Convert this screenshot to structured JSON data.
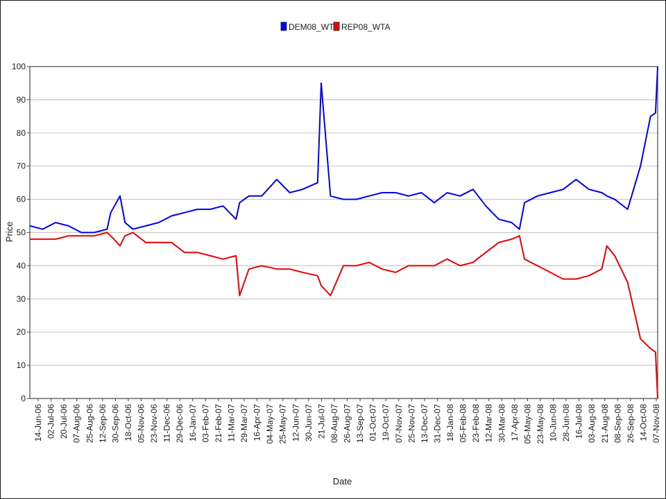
{
  "chart_data": {
    "type": "line",
    "title": "",
    "xlabel": "Date",
    "ylabel": "Price",
    "ylim": [
      0,
      100
    ],
    "yticks": [
      0,
      10,
      20,
      30,
      40,
      50,
      60,
      70,
      80,
      90,
      100
    ],
    "grid": true,
    "legend_position": "top-center",
    "colors": {
      "DEM08_WTA": "#0000ee",
      "REP08_WTA": "#ee0000",
      "grid": "#c8c8c8"
    },
    "x_tick_labels": [
      "14-Jun-06",
      "02-Jul-06",
      "20-Jul-06",
      "07-Aug-06",
      "25-Aug-06",
      "12-Sep-06",
      "30-Sep-06",
      "18-Oct-06",
      "05-Nov-06",
      "23-Nov-06",
      "11-Dec-06",
      "29-Dec-06",
      "16-Jan-07",
      "03-Feb-07",
      "21-Feb-07",
      "11-Mar-07",
      "29-Mar-07",
      "16-Apr-07",
      "04-May-07",
      "25-May-07",
      "12-Jun-07",
      "30-Jun-07",
      "21-Jul-07",
      "08-Aug-07",
      "26-Aug-07",
      "13-Sep-07",
      "01-Oct-07",
      "19-Oct-07",
      "07-Nov-07",
      "25-Nov-07",
      "13-Dec-07",
      "31-Dec-07",
      "18-Jan-08",
      "05-Feb-08",
      "23-Feb-08",
      "12-Mar-08",
      "30-Mar-08",
      "17-Apr-08",
      "05-May-08",
      "23-May-08",
      "10-Jun-08",
      "28-Jun-08",
      "16-Jul-08",
      "03-Aug-08",
      "21-Aug-08",
      "08-Sep-08",
      "26-Sep-08",
      "14-Oct-08",
      "07-Nov-08"
    ],
    "x": [
      "2006-06-14",
      "2006-07-02",
      "2006-07-20",
      "2006-08-07",
      "2006-08-25",
      "2006-09-12",
      "2006-09-30",
      "2006-10-05",
      "2006-10-18",
      "2006-10-25",
      "2006-11-05",
      "2006-11-23",
      "2006-12-11",
      "2006-12-29",
      "2007-01-16",
      "2007-02-03",
      "2007-02-21",
      "2007-03-11",
      "2007-03-29",
      "2007-04-03",
      "2007-04-16",
      "2007-05-04",
      "2007-05-25",
      "2007-06-12",
      "2007-06-30",
      "2007-07-21",
      "2007-07-26",
      "2007-08-08",
      "2007-08-26",
      "2007-09-13",
      "2007-10-01",
      "2007-10-19",
      "2007-11-07",
      "2007-11-25",
      "2007-12-13",
      "2007-12-31",
      "2008-01-18",
      "2008-02-05",
      "2008-02-23",
      "2008-03-12",
      "2008-03-30",
      "2008-04-17",
      "2008-04-28",
      "2008-05-05",
      "2008-05-23",
      "2008-06-10",
      "2008-06-28",
      "2008-07-16",
      "2008-08-03",
      "2008-08-21",
      "2008-08-28",
      "2008-09-08",
      "2008-09-26",
      "2008-10-14",
      "2008-10-28",
      "2008-11-04",
      "2008-11-07"
    ],
    "series": [
      {
        "name": "DEM08_WTA",
        "values": [
          52,
          51,
          53,
          52,
          50,
          50,
          51,
          56,
          61,
          53,
          51,
          52,
          53,
          55,
          56,
          57,
          57,
          58,
          54,
          59,
          61,
          61,
          66,
          62,
          63,
          65,
          95,
          61,
          60,
          60,
          61,
          62,
          62,
          61,
          62,
          59,
          62,
          61,
          63,
          58,
          54,
          53,
          51,
          59,
          61,
          62,
          63,
          66,
          63,
          62,
          61,
          60,
          57,
          70,
          85,
          86,
          100
        ]
      },
      {
        "name": "REP08_WTA",
        "values": [
          48,
          48,
          48,
          49,
          49,
          49,
          50,
          49,
          46,
          49,
          50,
          47,
          47,
          47,
          44,
          44,
          43,
          42,
          43,
          31,
          39,
          40,
          39,
          39,
          38,
          37,
          34,
          31,
          40,
          40,
          41,
          39,
          38,
          40,
          40,
          40,
          42,
          40,
          41,
          44,
          47,
          48,
          49,
          42,
          40,
          38,
          36,
          36,
          37,
          39,
          46,
          43,
          35,
          18,
          15,
          14,
          0
        ]
      }
    ]
  }
}
